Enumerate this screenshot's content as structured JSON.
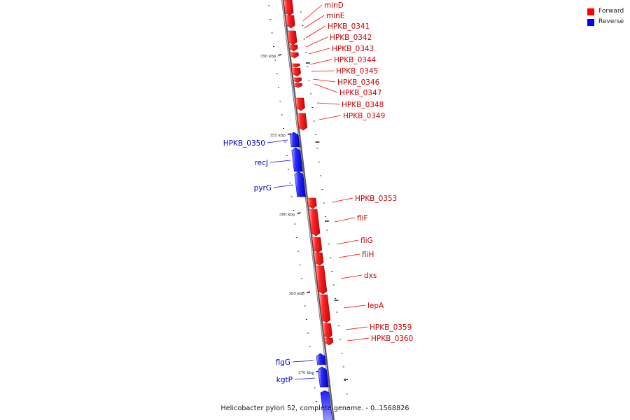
{
  "legend": {
    "forward_label": "Forward",
    "reverse_label": "Reverse",
    "forward_color": "#ff0000",
    "reverse_color": "#0000ff"
  },
  "caption": "Helicobacter pylori 52, complete genome. - 0..1568826",
  "colors": {
    "backbone": "#888888",
    "forward": "#ff0000",
    "reverse": "#0000ff",
    "tick": "#222222"
  },
  "kbp_ticks": [
    {
      "label": "350 kbp",
      "kbp": 350
    },
    {
      "label": "355 kbp",
      "kbp": 355
    },
    {
      "label": "360 kbp",
      "kbp": 360
    },
    {
      "label": "365 kbp",
      "kbp": 365
    },
    {
      "label": "370 kbp",
      "kbp": 370
    }
  ],
  "genes": [
    {
      "name": "minD",
      "strand": "forward"
    },
    {
      "name": "minE",
      "strand": "forward"
    },
    {
      "name": "HPKB_0341",
      "strand": "forward"
    },
    {
      "name": "HPKB_0342",
      "strand": "forward"
    },
    {
      "name": "HPKB_0343",
      "strand": "forward"
    },
    {
      "name": "HPKB_0344",
      "strand": "forward"
    },
    {
      "name": "HPKB_0345",
      "strand": "forward"
    },
    {
      "name": "HPKB_0346",
      "strand": "forward"
    },
    {
      "name": "HPKB_0347",
      "strand": "forward"
    },
    {
      "name": "HPKB_0348",
      "strand": "forward"
    },
    {
      "name": "HPKB_0349",
      "strand": "forward"
    },
    {
      "name": "HPKB_0350",
      "strand": "reverse"
    },
    {
      "name": "recJ",
      "strand": "reverse"
    },
    {
      "name": "pyrG",
      "strand": "reverse"
    },
    {
      "name": "HPKB_0353",
      "strand": "forward"
    },
    {
      "name": "fliF",
      "strand": "forward"
    },
    {
      "name": "fliG",
      "strand": "forward"
    },
    {
      "name": "fliH",
      "strand": "forward"
    },
    {
      "name": "dxs",
      "strand": "forward"
    },
    {
      "name": "lepA",
      "strand": "forward"
    },
    {
      "name": "HPKB_0359",
      "strand": "forward"
    },
    {
      "name": "HPKB_0360",
      "strand": "forward"
    },
    {
      "name": "flgG",
      "strand": "reverse"
    },
    {
      "name": "kgtP",
      "strand": "reverse"
    },
    {
      "name": "",
      "strand": "reverse"
    }
  ]
}
